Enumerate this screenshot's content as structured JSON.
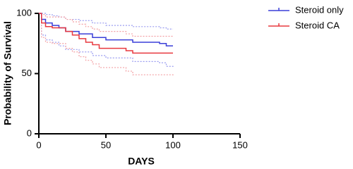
{
  "chart_data": {
    "type": "survival",
    "xlabel": "DAYS",
    "ylabel": "Probability of Survival",
    "xlim": [
      0,
      150
    ],
    "xticks": [
      0,
      50,
      100,
      150
    ],
    "ylim": [
      0,
      100
    ],
    "yticks": [
      0,
      50,
      100
    ],
    "series": [
      {
        "name": "Steroid only",
        "color": "#3a3fd8",
        "ci_color": "#9a9cf0",
        "x": [
          0,
          2,
          5,
          10,
          15,
          20,
          30,
          40,
          50,
          70,
          90,
          95,
          100
        ],
        "values": [
          100,
          95,
          92,
          90,
          88,
          85,
          83,
          80,
          78,
          76,
          75,
          73,
          73
        ],
        "ci_upper": [
          100,
          100,
          99,
          98,
          97,
          95,
          94,
          92,
          90,
          89,
          88,
          87,
          87
        ],
        "ci_lower": [
          100,
          82,
          78,
          76,
          73,
          70,
          68,
          65,
          63,
          60,
          59,
          56,
          55
        ]
      },
      {
        "name": "Steroid CA",
        "color": "#e8383f",
        "ci_color": "#f3a0a4",
        "x": [
          0,
          2,
          5,
          10,
          20,
          25,
          30,
          35,
          40,
          45,
          65,
          70,
          100
        ],
        "values": [
          100,
          92,
          89,
          88,
          85,
          82,
          79,
          76,
          74,
          71,
          69,
          67,
          67
        ],
        "ci_upper": [
          100,
          99,
          97,
          97,
          95,
          93,
          91,
          89,
          87,
          85,
          83,
          81,
          81
        ],
        "ci_lower": [
          100,
          80,
          76,
          75,
          71,
          68,
          64,
          61,
          58,
          55,
          52,
          49,
          48
        ]
      }
    ]
  }
}
